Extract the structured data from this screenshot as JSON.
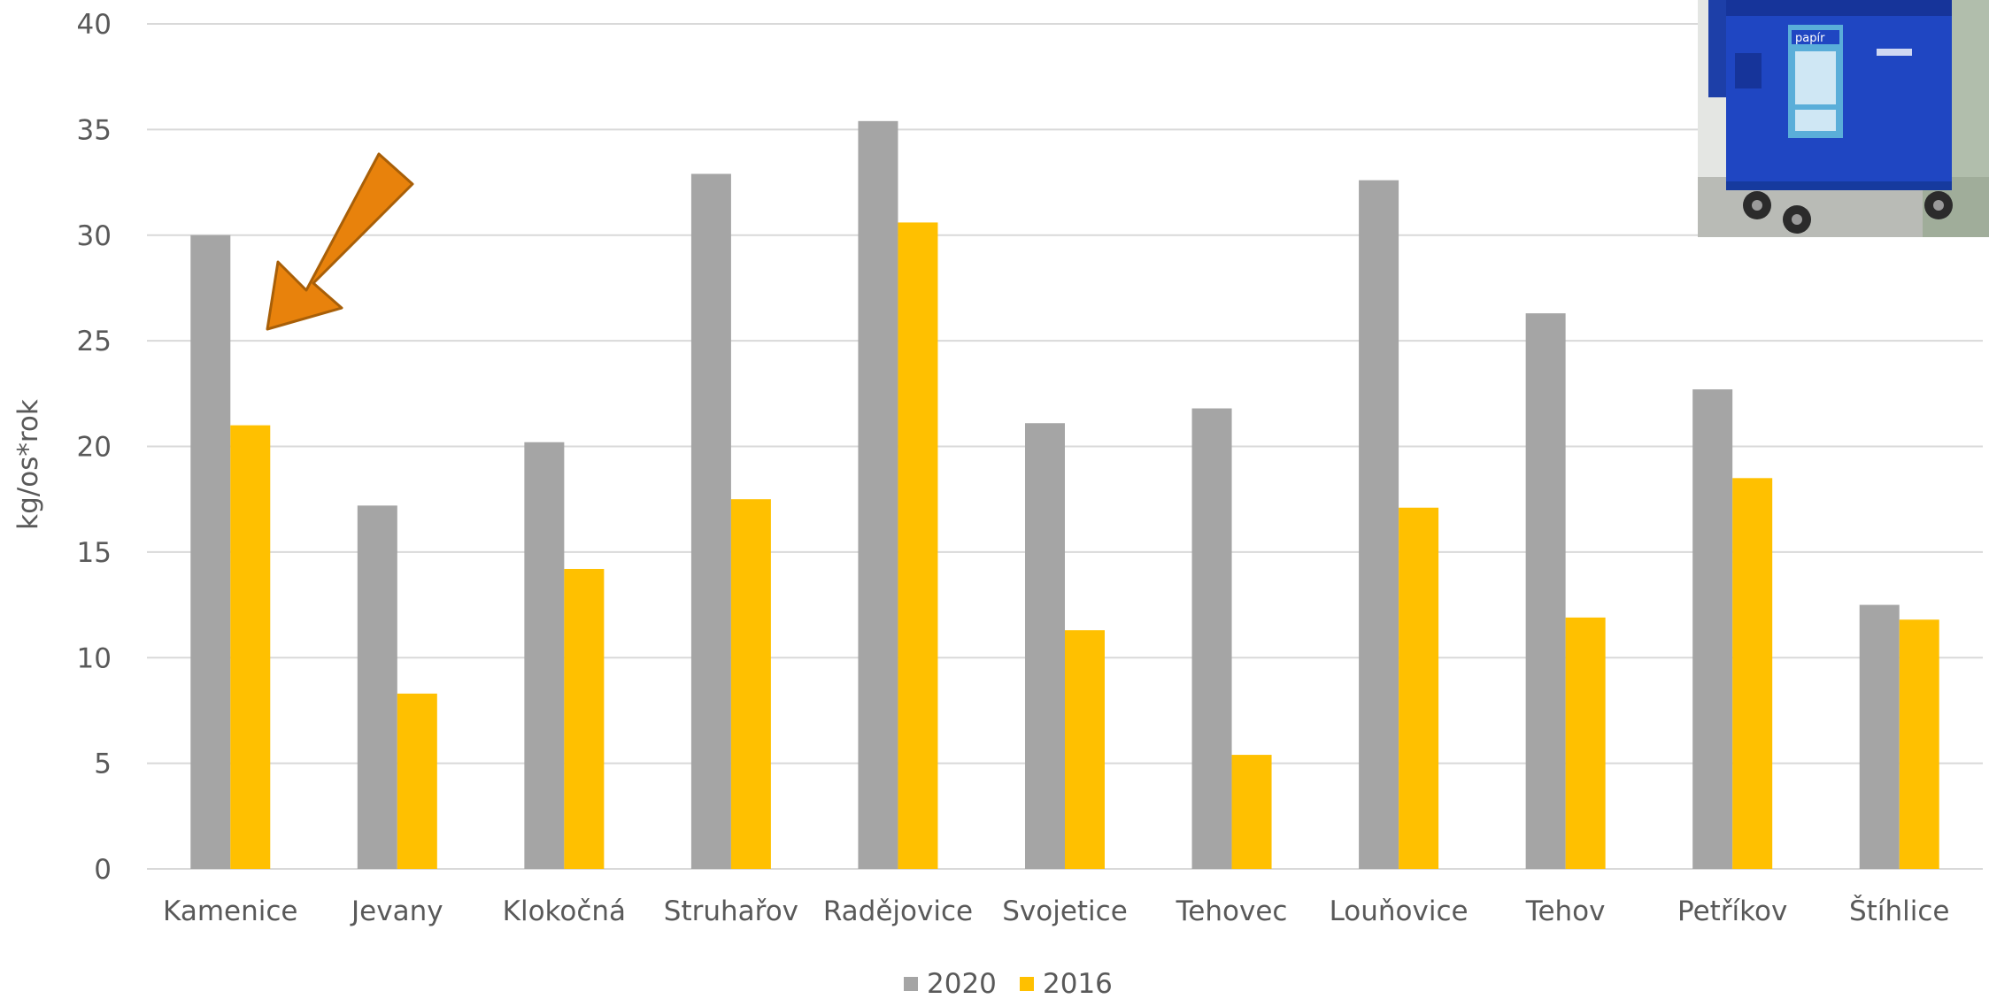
{
  "chart_data": {
    "type": "bar",
    "title": "",
    "xlabel": "",
    "ylabel": "kg/os*rok",
    "ylim": [
      0,
      40
    ],
    "yticks": [
      0,
      5,
      10,
      15,
      20,
      25,
      30,
      35,
      40
    ],
    "grid": true,
    "legend_position": "bottom",
    "categories": [
      "Kamenice",
      "Jevany",
      "Klokočná",
      "Struhařov",
      "Radějovice",
      "Svojetice",
      "Tehovec",
      "Louňovice",
      "Tehov",
      "Petříkov",
      "Štíhlice"
    ],
    "series": [
      {
        "name": "2020",
        "color": "#a5a5a5",
        "values": [
          30.0,
          17.2,
          20.2,
          32.9,
          35.4,
          21.1,
          21.8,
          32.6,
          26.3,
          22.7,
          12.5
        ]
      },
      {
        "name": "2016",
        "color": "#ffc000",
        "values": [
          21.0,
          8.3,
          14.2,
          17.5,
          30.6,
          11.3,
          5.4,
          17.1,
          11.9,
          18.5,
          11.8
        ]
      }
    ],
    "annotations": [
      {
        "type": "arrow",
        "icon": "arrow-icon",
        "color": "#e8820c",
        "points_to": "Kamenice"
      },
      {
        "type": "image",
        "icon": "blue-paper-recycling-container-icon",
        "label": "papír"
      }
    ]
  }
}
